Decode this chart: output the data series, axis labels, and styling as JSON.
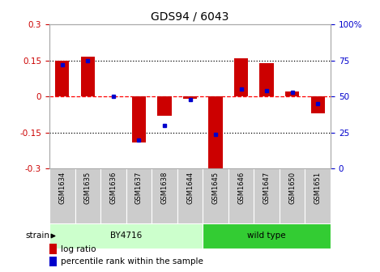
{
  "title": "GDS94 / 6043",
  "samples": [
    "GSM1634",
    "GSM1635",
    "GSM1636",
    "GSM1637",
    "GSM1638",
    "GSM1644",
    "GSM1645",
    "GSM1646",
    "GSM1647",
    "GSM1650",
    "GSM1651"
  ],
  "log_ratio": [
    0.15,
    0.165,
    0.0,
    -0.19,
    -0.08,
    -0.01,
    -0.3,
    0.16,
    0.14,
    0.02,
    -0.07
  ],
  "percentile": [
    72,
    75,
    50,
    20,
    30,
    48,
    24,
    55,
    54,
    53,
    45
  ],
  "bar_color": "#cc0000",
  "dot_color": "#0000cc",
  "ylim": [
    -0.3,
    0.3
  ],
  "y2lim": [
    0,
    100
  ],
  "yticks": [
    -0.3,
    -0.15,
    0.0,
    0.15,
    0.3
  ],
  "y2ticks": [
    0,
    25,
    50,
    75,
    100
  ],
  "ytick_labels": [
    "-0.3",
    "-0.15",
    "0",
    "0.15",
    "0.3"
  ],
  "y2tick_labels": [
    "0",
    "25",
    "50",
    "75",
    "100%"
  ],
  "hlines": [
    -0.15,
    0.0,
    0.15
  ],
  "hline_styles": [
    "dotted",
    "dashed",
    "dotted"
  ],
  "hline_colors": [
    "black",
    "red",
    "black"
  ],
  "strain_groups": [
    {
      "label": "BY4716",
      "start": 0,
      "end": 5,
      "color": "#ccffcc"
    },
    {
      "label": "wild type",
      "start": 6,
      "end": 10,
      "color": "#33cc33"
    }
  ],
  "strain_label": "strain",
  "legend_items": [
    {
      "label": "log ratio",
      "color": "#cc0000"
    },
    {
      "label": "percentile rank within the sample",
      "color": "#0000cc"
    }
  ],
  "bar_width": 0.55,
  "background_color": "#ffffff",
  "plot_bg": "#ffffff",
  "tick_label_color_left": "#cc0000",
  "tick_label_color_right": "#0000cc",
  "title_fontsize": 10,
  "tick_fontsize": 7.5,
  "label_fontsize": 7.5
}
